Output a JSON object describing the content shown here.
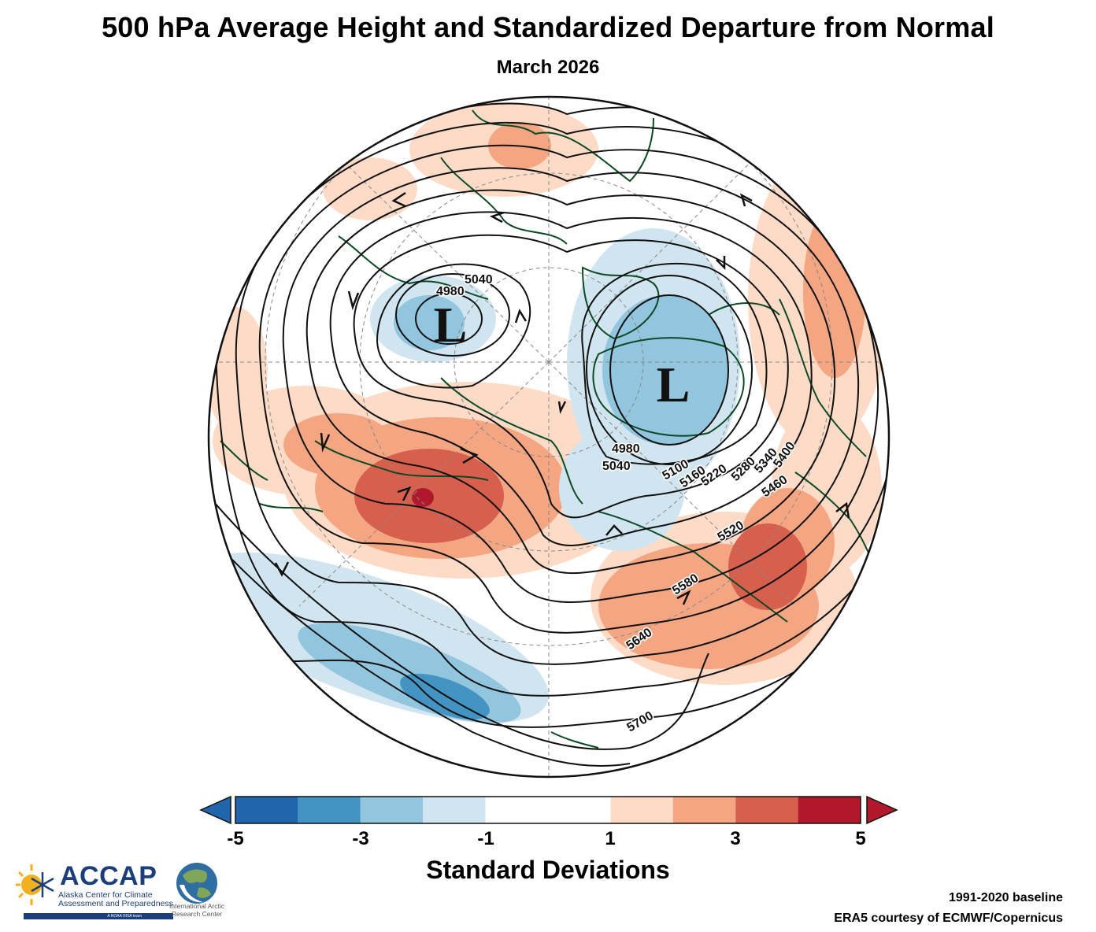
{
  "title": "500 hPa Average Height and Standardized Departure from Normal",
  "subtitle": "March 2026",
  "map": {
    "low_symbol": "L",
    "contour_labels": [
      "4980",
      "5040",
      "4980",
      "5040",
      "5100",
      "5160",
      "5220",
      "5280",
      "5340",
      "5400",
      "5460",
      "5520",
      "5580",
      "5640",
      "5700"
    ],
    "colors": {
      "land_outline": "#0b4a24",
      "contour": "#111111",
      "grid": "#888888"
    }
  },
  "colorbar": {
    "title": "Standard Deviations",
    "tick_labels": [
      "-5",
      "-3",
      "-1",
      "1",
      "3",
      "5"
    ],
    "tick_values": [
      -5,
      -3,
      -1,
      1,
      3,
      5
    ],
    "min": -5,
    "max": 5,
    "bins": [
      {
        "from": -5,
        "to": -4,
        "color": "#2166ac"
      },
      {
        "from": -4,
        "to": -3,
        "color": "#4393c3"
      },
      {
        "from": -3,
        "to": -2,
        "color": "#92c5de"
      },
      {
        "from": -2,
        "to": -1,
        "color": "#d1e5f0"
      },
      {
        "from": -1,
        "to": 1,
        "color": "#ffffff"
      },
      {
        "from": 1,
        "to": 2,
        "color": "#fddbc7"
      },
      {
        "from": 2,
        "to": 3,
        "color": "#f4a582"
      },
      {
        "from": 3,
        "to": 4,
        "color": "#d6604d"
      },
      {
        "from": 4,
        "to": 5,
        "color": "#b2182b"
      }
    ],
    "under_color": "#2166ac",
    "over_color": "#b2182b"
  },
  "logos": {
    "accap_name": "ACCAP",
    "accap_full": "Alaska Center for Climate Assessment and Preparedness",
    "accap_tagline": "A NOAA RISA team",
    "iarc_name": "International Arctic Research Center"
  },
  "footer": {
    "baseline": "1991-2020 baseline",
    "credit": "ERA5 courtesy of ECMWF/Copernicus"
  }
}
